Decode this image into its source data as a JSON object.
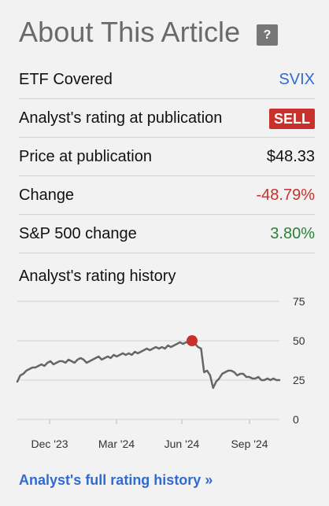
{
  "title": "About This Article",
  "help_label": "?",
  "rows": [
    {
      "label": "ETF Covered",
      "value": "SVIX"
    },
    {
      "label": "Analyst's rating at publication",
      "value": "SELL"
    },
    {
      "label": "Price at publication",
      "value": "$48.33"
    },
    {
      "label": "Change",
      "value": "-48.79%"
    },
    {
      "label": "S&P 500 change",
      "value": "3.80%"
    }
  ],
  "chart_title": "Analyst's rating history",
  "chart_data": {
    "type": "line",
    "x_labels": [
      "Dec '23",
      "Mar '24",
      "Jun '24",
      "Sep '24"
    ],
    "y_ticks": [
      0,
      25,
      50,
      75
    ],
    "ylim": [
      0,
      75
    ],
    "series": [
      {
        "values": [
          24,
          28,
          29,
          31,
          32,
          33,
          33,
          34,
          35,
          34,
          36,
          37,
          35,
          36,
          37,
          37,
          36,
          38,
          37,
          36,
          38,
          39,
          38,
          36,
          37,
          38,
          39,
          40,
          38,
          39,
          40,
          39,
          41,
          40,
          41,
          42,
          41,
          42,
          41,
          43,
          42,
          43,
          44,
          45,
          44,
          45,
          46,
          45,
          46,
          45,
          47,
          46,
          47,
          48,
          49,
          48,
          49,
          49,
          50,
          48,
          46,
          45,
          30,
          31,
          28,
          20,
          24,
          26,
          29,
          30,
          31,
          31,
          30,
          28,
          29,
          29,
          27,
          27,
          26,
          26,
          27,
          25,
          25,
          26,
          25,
          26,
          25,
          25
        ]
      }
    ],
    "marker": {
      "index": 58,
      "value": 50
    }
  },
  "footer_link": "Analyst's full rating history »"
}
